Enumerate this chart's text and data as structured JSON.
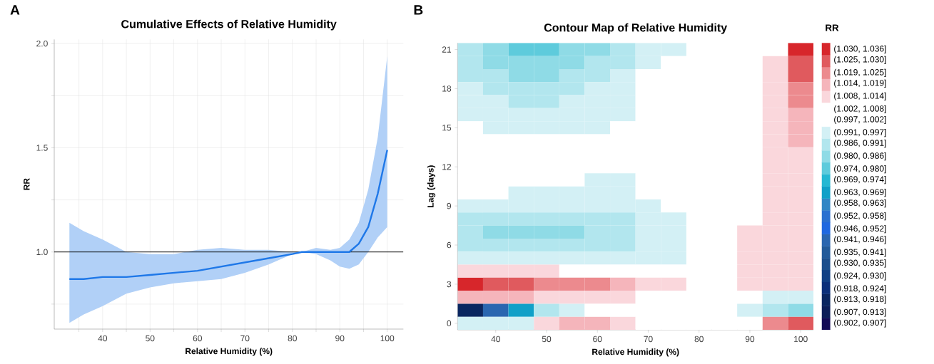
{
  "chart_data": [
    {
      "type": "line",
      "title": "Cumulative Effects of Relative Humidity",
      "xlabel": "Relative Humidity (%)",
      "ylabel": "RR",
      "annotations": [
        "A"
      ],
      "x": [
        33,
        36,
        40,
        45,
        50,
        55,
        60,
        65,
        70,
        75,
        80,
        82,
        85,
        88,
        90,
        92,
        94,
        96,
        98,
        100
      ],
      "series": [
        {
          "color": "#1f78e8",
          "values": [
            0.87,
            0.87,
            0.88,
            0.88,
            0.89,
            0.9,
            0.91,
            0.93,
            0.95,
            0.97,
            0.99,
            1.0,
            1.0,
            1.0,
            1.0,
            1.0,
            1.04,
            1.12,
            1.28,
            1.49
          ],
          "lower": [
            0.66,
            0.7,
            0.74,
            0.8,
            0.83,
            0.85,
            0.86,
            0.87,
            0.9,
            0.94,
            0.99,
            1.0,
            0.99,
            0.96,
            0.93,
            0.92,
            0.94,
            1.0,
            1.07,
            1.12
          ],
          "upper": [
            1.14,
            1.1,
            1.06,
            1.0,
            0.99,
            0.99,
            1.01,
            1.02,
            1.01,
            1.01,
            1.0,
            1.0,
            1.02,
            1.01,
            1.02,
            1.06,
            1.14,
            1.3,
            1.55,
            1.94
          ]
        }
      ],
      "xlim": [
        29.8,
        103.4
      ],
      "ylim": [
        0.63,
        2.02
      ],
      "xticks": [
        {
          "value": 35,
          "label": null
        },
        40,
        {
          "value": 45,
          "label": null
        },
        50,
        {
          "value": 55,
          "label": null
        },
        60,
        {
          "value": 65,
          "label": null
        },
        70,
        {
          "value": 75,
          "label": null
        },
        80,
        {
          "value": 85,
          "label": null
        },
        90,
        {
          "value": 95,
          "label": null
        },
        100
      ],
      "yticks": [
        {
          "value": 0.75,
          "label": null
        },
        {
          "value": 1,
          "label": "1.0"
        },
        {
          "value": 1.25,
          "label": null
        },
        {
          "value": 1.5,
          "label": "1.5"
        },
        {
          "value": 1.75,
          "label": null
        },
        {
          "value": 2,
          "label": "2.0"
        }
      ],
      "ref_lines": [
        {
          "axis": "y",
          "value": 1,
          "color": "#000000"
        }
      ],
      "grid": true,
      "marker": "none",
      "line_style": "solid"
    },
    {
      "type": "heatmap",
      "title": "Contour Map of Relative Humidity",
      "xlabel": "Relative Humidity (%)",
      "ylabel": "Lag (days)",
      "clabel": "RR",
      "annotations": [
        "B"
      ],
      "categories": [
        null,
        "40",
        null,
        "50",
        null,
        "60",
        null,
        "70",
        null,
        "80",
        null,
        "90",
        null,
        "100"
      ],
      "y_categories": [
        "21",
        null,
        null,
        "18",
        null,
        null,
        "15",
        null,
        null,
        "12",
        null,
        null,
        "9",
        null,
        null,
        "6",
        null,
        null,
        "3",
        null,
        null,
        "0"
      ],
      "cells": [
        [
          0.989,
          0.983,
          0.977,
          0.977,
          0.983,
          0.983,
          0.989,
          0.994,
          0.994,
          1.0,
          1.0,
          1.0,
          1.0,
          1.033
        ],
        [
          0.989,
          0.983,
          0.983,
          0.983,
          0.983,
          0.989,
          0.989,
          0.994,
          1.0,
          1.0,
          1.0,
          1.0,
          1.011,
          1.028
        ],
        [
          0.989,
          0.989,
          0.983,
          0.983,
          0.989,
          0.989,
          0.994,
          1.0,
          1.0,
          1.0,
          1.0,
          1.0,
          1.011,
          1.028
        ],
        [
          0.994,
          0.989,
          0.989,
          0.989,
          0.989,
          0.994,
          0.994,
          1.0,
          1.0,
          1.0,
          1.0,
          1.0,
          1.011,
          1.022
        ],
        [
          0.994,
          0.994,
          0.989,
          0.989,
          0.994,
          0.994,
          0.994,
          1.0,
          1.0,
          1.0,
          1.0,
          1.0,
          1.011,
          1.022
        ],
        [
          0.994,
          0.994,
          0.994,
          0.994,
          0.994,
          0.994,
          0.994,
          1.0,
          1.0,
          1.0,
          1.0,
          1.0,
          1.011,
          1.017
        ],
        [
          1.0,
          0.994,
          0.994,
          0.994,
          0.994,
          0.994,
          1.0,
          1.0,
          1.0,
          1.0,
          1.0,
          1.0,
          1.011,
          1.017
        ],
        [
          1.0,
          1.0,
          1.0,
          1.0,
          1.0,
          1.0,
          1.0,
          1.0,
          1.0,
          1.0,
          1.0,
          1.0,
          1.011,
          1.017
        ],
        [
          1.0,
          1.0,
          1.0,
          1.0,
          1.0,
          1.0,
          1.0,
          1.0,
          1.0,
          1.0,
          1.0,
          1.0,
          1.011,
          1.011
        ],
        [
          1.0,
          1.0,
          1.0,
          1.0,
          1.0,
          1.0,
          1.0,
          1.0,
          1.0,
          1.0,
          1.0,
          1.0,
          1.011,
          1.011
        ],
        [
          1.0,
          1.0,
          1.0,
          1.0,
          1.0,
          0.994,
          0.994,
          1.0,
          1.0,
          1.0,
          1.0,
          1.0,
          1.011,
          1.011
        ],
        [
          1.0,
          1.0,
          0.994,
          0.994,
          0.994,
          0.994,
          0.994,
          1.0,
          1.0,
          1.0,
          1.0,
          1.0,
          1.011,
          1.011
        ],
        [
          0.994,
          0.994,
          0.994,
          0.994,
          0.994,
          0.994,
          0.994,
          0.994,
          1.0,
          1.0,
          1.0,
          1.0,
          1.011,
          1.011
        ],
        [
          0.989,
          0.989,
          0.989,
          0.989,
          0.989,
          0.989,
          0.989,
          0.994,
          0.994,
          1.0,
          1.0,
          1.0,
          1.011,
          1.011
        ],
        [
          0.989,
          0.983,
          0.983,
          0.983,
          0.983,
          0.989,
          0.989,
          0.994,
          0.994,
          1.0,
          1.0,
          1.011,
          1.011,
          1.011
        ],
        [
          0.989,
          0.989,
          0.989,
          0.989,
          0.989,
          0.989,
          0.989,
          0.994,
          0.994,
          1.0,
          1.0,
          1.011,
          1.011,
          1.011
        ],
        [
          0.994,
          0.994,
          0.994,
          0.994,
          0.994,
          0.994,
          0.994,
          0.994,
          0.994,
          1.0,
          1.0,
          1.011,
          1.011,
          1.011
        ],
        [
          1.011,
          1.011,
          1.011,
          1.011,
          1.0,
          1.0,
          1.0,
          1.0,
          1.0,
          1.0,
          1.0,
          1.011,
          1.011,
          1.011
        ],
        [
          1.033,
          1.028,
          1.028,
          1.022,
          1.022,
          1.022,
          1.017,
          1.011,
          1.011,
          1.0,
          1.0,
          1.011,
          1.011,
          1.011
        ],
        [
          1.017,
          1.017,
          1.017,
          1.011,
          1.011,
          1.011,
          1.011,
          1.0,
          1.0,
          1.0,
          1.0,
          1.0,
          0.994,
          0.994
        ],
        [
          0.916,
          0.944,
          0.966,
          0.989,
          0.994,
          1.0,
          1.0,
          1.0,
          1.0,
          1.0,
          1.0,
          0.994,
          0.989,
          0.983
        ],
        [
          0.994,
          0.994,
          0.994,
          1.011,
          1.017,
          1.017,
          1.011,
          1.0,
          1.0,
          1.0,
          1.0,
          1.0,
          1.022,
          1.028
        ]
      ],
      "clim": [
        0.902,
        1.036
      ],
      "cticks": [
        {
          "value": 1.033,
          "label": "(1.030, 1.036]"
        },
        {
          "value": 1.028,
          "label": "(1.025, 1.030]"
        },
        {
          "value": 1.022,
          "label": "(1.019, 1.025]"
        },
        {
          "value": 1.017,
          "label": "(1.014, 1.019]"
        },
        {
          "value": 1.011,
          "label": "(1.008, 1.014]"
        },
        {
          "value": 1.005,
          "label": "(1.002, 1.008]"
        },
        {
          "value": 1.0,
          "label": "(0.997, 1.002]"
        },
        {
          "value": 0.994,
          "label": "(0.991, 0.997]"
        },
        {
          "value": 0.989,
          "label": "(0.986, 0.991]"
        },
        {
          "value": 0.983,
          "label": "(0.980, 0.986]"
        },
        {
          "value": 0.977,
          "label": "(0.974, 0.980]"
        },
        {
          "value": 0.972,
          "label": "(0.969, 0.974]"
        },
        {
          "value": 0.966,
          "label": "(0.963, 0.969]"
        },
        {
          "value": 0.961,
          "label": "(0.958, 0.963]"
        },
        {
          "value": 0.955,
          "label": "(0.952, 0.958]"
        },
        {
          "value": 0.949,
          "label": "(0.946, 0.952]"
        },
        {
          "value": 0.944,
          "label": "(0.941, 0.946]"
        },
        {
          "value": 0.938,
          "label": "(0.935, 0.941]"
        },
        {
          "value": 0.933,
          "label": "(0.930, 0.935]"
        },
        {
          "value": 0.927,
          "label": "(0.924, 0.930]"
        },
        {
          "value": 0.921,
          "label": "(0.918, 0.924]"
        },
        {
          "value": 0.916,
          "label": "(0.913, 0.918]"
        },
        {
          "value": 0.91,
          "label": "(0.907, 0.913]"
        },
        {
          "value": 0.905,
          "label": "(0.902, 0.907]"
        }
      ]
    }
  ]
}
